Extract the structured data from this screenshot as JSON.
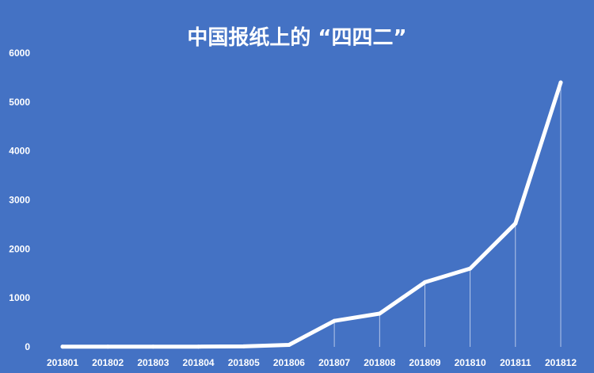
{
  "chart_data": {
    "type": "line",
    "title": "中国报纸上的 “四四二”",
    "xlabel": "",
    "ylabel": "",
    "categories": [
      "201801",
      "201802",
      "201803",
      "201804",
      "201805",
      "201806",
      "201807",
      "201808",
      "201809",
      "201810",
      "201811",
      "201812"
    ],
    "series": [
      {
        "values": [
          5,
          5,
          5,
          5,
          10,
          40,
          530,
          680,
          1320,
          1600,
          2520,
          5400
        ]
      }
    ],
    "ylim": [
      0,
      6000
    ],
    "yticks": [
      "0",
      "1000",
      "2000",
      "3000",
      "4000",
      "5000",
      "6000"
    ],
    "grid": false,
    "drop_lines": true,
    "colors": {
      "background": "#4472C4",
      "line": "#FFFFFF",
      "text": "#FFFFFF"
    }
  }
}
